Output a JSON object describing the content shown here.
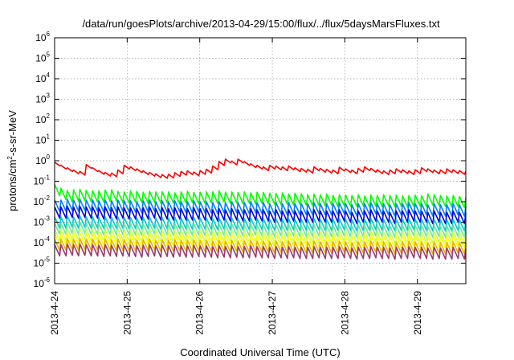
{
  "chart_data": {
    "type": "line",
    "title": "/data/run/goesPlots/archive/2013-04-29/15:00/flux/../flux/5daysMarsFluxes.txt",
    "xlabel": "Coordinated Universal Time (UTC)",
    "ylabel": {
      "base": "protons/cm",
      "sup": "2",
      "rest": "-s-sr-MeV"
    },
    "yscale": "log",
    "ylim": [
      1e-06,
      1000000.0
    ],
    "yticks": [
      {
        "base": "10",
        "exp": "6"
      },
      {
        "base": "10",
        "exp": "5"
      },
      {
        "base": "10",
        "exp": "4"
      },
      {
        "base": "10",
        "exp": "3"
      },
      {
        "base": "10",
        "exp": "2"
      },
      {
        "base": "10",
        "exp": "1"
      },
      {
        "base": "10",
        "exp": "0"
      },
      {
        "base": "10",
        "exp": "-1"
      },
      {
        "base": "10",
        "exp": "-2"
      },
      {
        "base": "10",
        "exp": "-3"
      },
      {
        "base": "10",
        "exp": "-4"
      },
      {
        "base": "10",
        "exp": "-5"
      },
      {
        "base": "10",
        "exp": "-6"
      }
    ],
    "xlim": [
      "2013-04-24",
      "2013-04-29T16:00"
    ],
    "xticks": [
      "2013-4-24",
      "2013-4-25",
      "2013-4-26",
      "2013-4-27",
      "2013-4-28",
      "2013-4-29"
    ],
    "grid": true,
    "series": [
      {
        "color": "#ff0000",
        "values": [
          0.85,
          0.6,
          0.45,
          0.35,
          0.3,
          0.65,
          0.45,
          0.33,
          0.27,
          0.25,
          0.35,
          0.6,
          0.5,
          0.4,
          0.32,
          0.27,
          0.23,
          0.21,
          0.22,
          0.26,
          0.3,
          0.32,
          0.28,
          0.33,
          0.38,
          0.55,
          0.9,
          1.2,
          0.95,
          1.2,
          0.9,
          0.7,
          0.6,
          0.5,
          0.6,
          0.55,
          0.5,
          0.55,
          0.45,
          0.42,
          0.38,
          0.5,
          0.42,
          0.38,
          0.35,
          0.48,
          0.4,
          0.35,
          0.42,
          0.5,
          0.42,
          0.36,
          0.32,
          0.35,
          0.4,
          0.36,
          0.32,
          0.36,
          0.45,
          0.4,
          0.35,
          0.35,
          0.4,
          0.36,
          0.33,
          0.3
        ]
      },
      {
        "color": "#00ff00",
        "values": [
          0.07,
          0.045,
          0.035,
          0.038,
          0.04,
          0.036,
          0.034,
          0.034,
          0.037,
          0.038,
          0.032,
          0.03,
          0.034,
          0.032,
          0.029,
          0.032,
          0.03,
          0.031,
          0.03,
          0.027,
          0.03,
          0.032,
          0.028,
          0.029,
          0.031,
          0.03,
          0.034,
          0.029,
          0.03,
          0.028,
          0.03,
          0.027,
          0.029,
          0.028,
          0.026,
          0.025,
          0.027,
          0.024,
          0.026,
          0.024,
          0.022,
          0.023,
          0.022,
          0.024,
          0.02,
          0.022,
          0.021,
          0.02,
          0.022,
          0.019,
          0.021,
          0.02,
          0.022,
          0.02,
          0.021,
          0.019,
          0.02,
          0.021,
          0.02,
          0.024,
          0.022,
          0.02,
          0.019,
          0.02,
          0.018,
          0.016
        ]
      },
      {
        "color": "#0080ff",
        "values": [
          0.012,
          0.012,
          0.013,
          0.012,
          0.013,
          0.012,
          0.012,
          0.011,
          0.012,
          0.011,
          0.012,
          0.011,
          0.011,
          0.01,
          0.011,
          0.012,
          0.01,
          0.011,
          0.01,
          0.011,
          0.01,
          0.01,
          0.011,
          0.01,
          0.01,
          0.009,
          0.01,
          0.009,
          0.01,
          0.009,
          0.009,
          0.01,
          0.009,
          0.009,
          0.008,
          0.009,
          0.008,
          0.009,
          0.008,
          0.008,
          0.008,
          0.009,
          0.008,
          0.008,
          0.008,
          0.009,
          0.008,
          0.007,
          0.008,
          0.008,
          0.009,
          0.008,
          0.008,
          0.007,
          0.008,
          0.008,
          0.009,
          0.008,
          0.008,
          0.007,
          0.008,
          0.007,
          0.007,
          0.008,
          0.007,
          0.006
        ]
      },
      {
        "color": "#0000e0",
        "values": [
          0.0055,
          0.0055,
          0.006,
          0.0055,
          0.006,
          0.0055,
          0.0055,
          0.005,
          0.0055,
          0.005,
          0.0055,
          0.005,
          0.005,
          0.0045,
          0.005,
          0.0055,
          0.0045,
          0.005,
          0.0045,
          0.005,
          0.0045,
          0.0045,
          0.005,
          0.0045,
          0.0045,
          0.004,
          0.0045,
          0.004,
          0.0045,
          0.004,
          0.004,
          0.0045,
          0.004,
          0.004,
          0.0035,
          0.004,
          0.0035,
          0.004,
          0.0035,
          0.0035,
          0.0035,
          0.004,
          0.0035,
          0.0035,
          0.0035,
          0.004,
          0.0035,
          0.003,
          0.0035,
          0.0035,
          0.004,
          0.0035,
          0.0035,
          0.003,
          0.0035,
          0.0035,
          0.004,
          0.0035,
          0.0035,
          0.003,
          0.0035,
          0.003,
          0.003,
          0.0035,
          0.003,
          0.0028
        ]
      },
      {
        "color": "#00c8c8",
        "values": [
          0.0018,
          0.0018,
          0.002,
          0.0018,
          0.002,
          0.0018,
          0.0018,
          0.0017,
          0.0018,
          0.0017,
          0.0018,
          0.0017,
          0.0017,
          0.0016,
          0.0017,
          0.0018,
          0.0016,
          0.0017,
          0.0016,
          0.0017,
          0.0016,
          0.0016,
          0.0017,
          0.0016,
          0.0016,
          0.0015,
          0.0016,
          0.0015,
          0.0016,
          0.0015,
          0.0015,
          0.0016,
          0.0015,
          0.0015,
          0.0014,
          0.0015,
          0.0014,
          0.0015,
          0.0014,
          0.0014,
          0.0014,
          0.0015,
          0.0014,
          0.0014,
          0.0014,
          0.0015,
          0.0014,
          0.0013,
          0.0014,
          0.0014,
          0.0015,
          0.0014,
          0.0014,
          0.0013,
          0.0014,
          0.0014,
          0.0015,
          0.0014,
          0.0014,
          0.0013,
          0.0014,
          0.0013,
          0.0013,
          0.0014,
          0.0013,
          0.0012
        ]
      },
      {
        "color": "#66e6a0",
        "values": [
          0.0009,
          0.0009,
          0.001,
          0.0009,
          0.001,
          0.0009,
          0.0009,
          0.00085,
          0.0009,
          0.00085,
          0.0009,
          0.00085,
          0.00085,
          0.0008,
          0.00085,
          0.0009,
          0.0008,
          0.00085,
          0.0008,
          0.00085,
          0.0008,
          0.0008,
          0.00085,
          0.0008,
          0.0008,
          0.00075,
          0.0008,
          0.00075,
          0.0008,
          0.00075,
          0.00075,
          0.0008,
          0.00075,
          0.00075,
          0.0007,
          0.00075,
          0.0007,
          0.00075,
          0.0007,
          0.0007,
          0.0007,
          0.00075,
          0.0007,
          0.0007,
          0.0007,
          0.00075,
          0.0007,
          0.00065,
          0.0007,
          0.0007,
          0.00075,
          0.0007,
          0.0007,
          0.00065,
          0.0007,
          0.0007,
          0.00075,
          0.0007,
          0.0007,
          0.00065,
          0.0007,
          0.00065,
          0.00065,
          0.0007,
          0.00065,
          0.0006
        ]
      },
      {
        "color": "#c8ff64",
        "values": [
          0.00045,
          0.00045,
          0.0005,
          0.00045,
          0.0005,
          0.00045,
          0.00045,
          0.00042,
          0.00045,
          0.00042,
          0.00045,
          0.00042,
          0.00042,
          0.0004,
          0.00042,
          0.00045,
          0.0004,
          0.00042,
          0.0004,
          0.00042,
          0.0004,
          0.0004,
          0.00042,
          0.0004,
          0.0004,
          0.00038,
          0.0004,
          0.00038,
          0.0004,
          0.00038,
          0.00038,
          0.0004,
          0.00038,
          0.00038,
          0.00035,
          0.00038,
          0.00035,
          0.00038,
          0.00035,
          0.00035,
          0.00035,
          0.00038,
          0.00035,
          0.00035,
          0.00035,
          0.00038,
          0.00035,
          0.00033,
          0.00035,
          0.00035,
          0.00038,
          0.00035,
          0.00035,
          0.00033,
          0.00035,
          0.00035,
          0.00038,
          0.00035,
          0.00035,
          0.00033,
          0.00035,
          0.00033,
          0.00033,
          0.00035,
          0.00033,
          0.0003
        ]
      },
      {
        "color": "#ffff00",
        "values": [
          0.00028,
          0.00028,
          0.0003,
          0.00028,
          0.0003,
          0.00028,
          0.00028,
          0.00026,
          0.00028,
          0.00026,
          0.00028,
          0.00026,
          0.00026,
          0.00025,
          0.00026,
          0.00028,
          0.00025,
          0.00026,
          0.00025,
          0.00026,
          0.00025,
          0.00025,
          0.00026,
          0.00025,
          0.00025,
          0.00024,
          0.00025,
          0.00024,
          0.00025,
          0.00024,
          0.00024,
          0.00025,
          0.00024,
          0.00024,
          0.00022,
          0.00024,
          0.00022,
          0.00024,
          0.00022,
          0.00022,
          0.00022,
          0.00024,
          0.00022,
          0.00022,
          0.00022,
          0.00024,
          0.00022,
          0.0002,
          0.00022,
          0.00022,
          0.00024,
          0.00022,
          0.00022,
          0.0002,
          0.00022,
          0.00022,
          0.00024,
          0.00022,
          0.00022,
          0.0002,
          0.00022,
          0.0002,
          0.0002,
          0.00022,
          0.0002,
          0.00019
        ]
      },
      {
        "color": "#e6b400",
        "values": [
          0.00015,
          0.00015,
          0.00016,
          0.00015,
          0.00016,
          0.00015,
          0.00015,
          0.00014,
          0.00015,
          0.00014,
          0.00015,
          0.00014,
          0.00014,
          0.00013,
          0.00014,
          0.00015,
          0.00013,
          0.00014,
          0.00013,
          0.00014,
          0.00013,
          0.00013,
          0.00014,
          0.00013,
          0.00013,
          0.00012,
          0.00013,
          0.00012,
          0.00013,
          0.00012,
          0.00012,
          0.00013,
          0.00012,
          0.00012,
          0.00011,
          0.00012,
          0.00011,
          0.00012,
          0.00011,
          0.00011,
          0.00011,
          0.00012,
          0.00011,
          0.00011,
          0.00011,
          0.00012,
          0.00011,
          0.0001,
          0.00011,
          0.00011,
          0.00012,
          0.00011,
          0.00011,
          0.0001,
          0.00011,
          0.00011,
          0.00012,
          0.00011,
          0.00011,
          0.0001,
          0.00011,
          0.0001,
          0.0001,
          0.00011,
          0.0001,
          0.0001
        ]
      },
      {
        "color": "#9b3a6e",
        "values": [
          8e-05,
          8e-05,
          8.5e-05,
          8e-05,
          8.5e-05,
          8e-05,
          8e-05,
          7.5e-05,
          8e-05,
          7.5e-05,
          8e-05,
          7.5e-05,
          7.5e-05,
          7e-05,
          7.5e-05,
          8e-05,
          7e-05,
          7.5e-05,
          7e-05,
          7.5e-05,
          7e-05,
          7e-05,
          7.5e-05,
          7e-05,
          7e-05,
          6.5e-05,
          7e-05,
          6.5e-05,
          7e-05,
          6.5e-05,
          6.5e-05,
          7e-05,
          6.5e-05,
          6.5e-05,
          6e-05,
          6.5e-05,
          6e-05,
          6.5e-05,
          6e-05,
          6e-05,
          6e-05,
          6.5e-05,
          6e-05,
          6e-05,
          6e-05,
          6.5e-05,
          6e-05,
          5.5e-05,
          6e-05,
          6e-05,
          6.5e-05,
          6e-05,
          6e-05,
          5.5e-05,
          6e-05,
          6e-05,
          6.5e-05,
          6e-05,
          6e-05,
          5.5e-05,
          6e-05,
          5.5e-05,
          5.5e-05,
          6e-05,
          5.5e-05,
          5e-05
        ]
      }
    ]
  }
}
